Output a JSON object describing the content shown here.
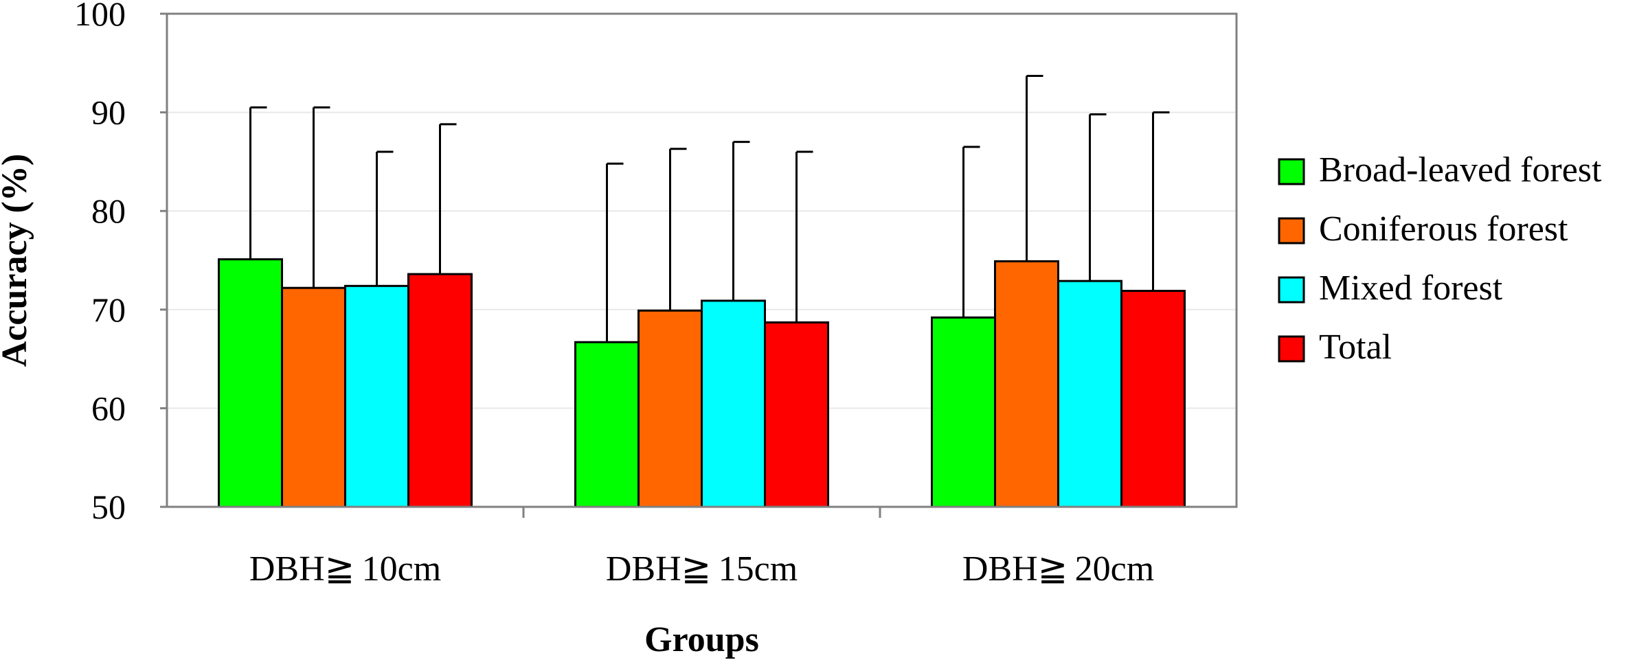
{
  "chart_data": {
    "type": "bar",
    "title": "",
    "xlabel": "Groups",
    "ylabel": "Accuracy (%)",
    "ylim": [
      50,
      100
    ],
    "yticks": [
      50,
      60,
      70,
      80,
      90,
      100
    ],
    "grid": true,
    "legend_position": "right",
    "categories": [
      "DBH≧ 10cm",
      "DBH≧ 15cm",
      "DBH≧ 20cm"
    ],
    "series": [
      {
        "name": "Broad-leaved forest",
        "color": "#00ff00",
        "values": [
          75.1,
          66.7,
          69.2
        ],
        "errors": [
          15.4,
          18.1,
          17.3
        ]
      },
      {
        "name": "Coniferous forest",
        "color": "#ff6600",
        "values": [
          72.2,
          69.9,
          74.9
        ],
        "errors": [
          18.3,
          16.4,
          18.8
        ]
      },
      {
        "name": "Mixed forest",
        "color": "#00ffff",
        "values": [
          72.4,
          70.9,
          72.9
        ],
        "errors": [
          13.6,
          16.1,
          16.9
        ]
      },
      {
        "name": "Total",
        "color": "#ff0000",
        "values": [
          73.6,
          68.7,
          71.9
        ],
        "errors": [
          15.2,
          17.3,
          18.1
        ]
      }
    ]
  }
}
